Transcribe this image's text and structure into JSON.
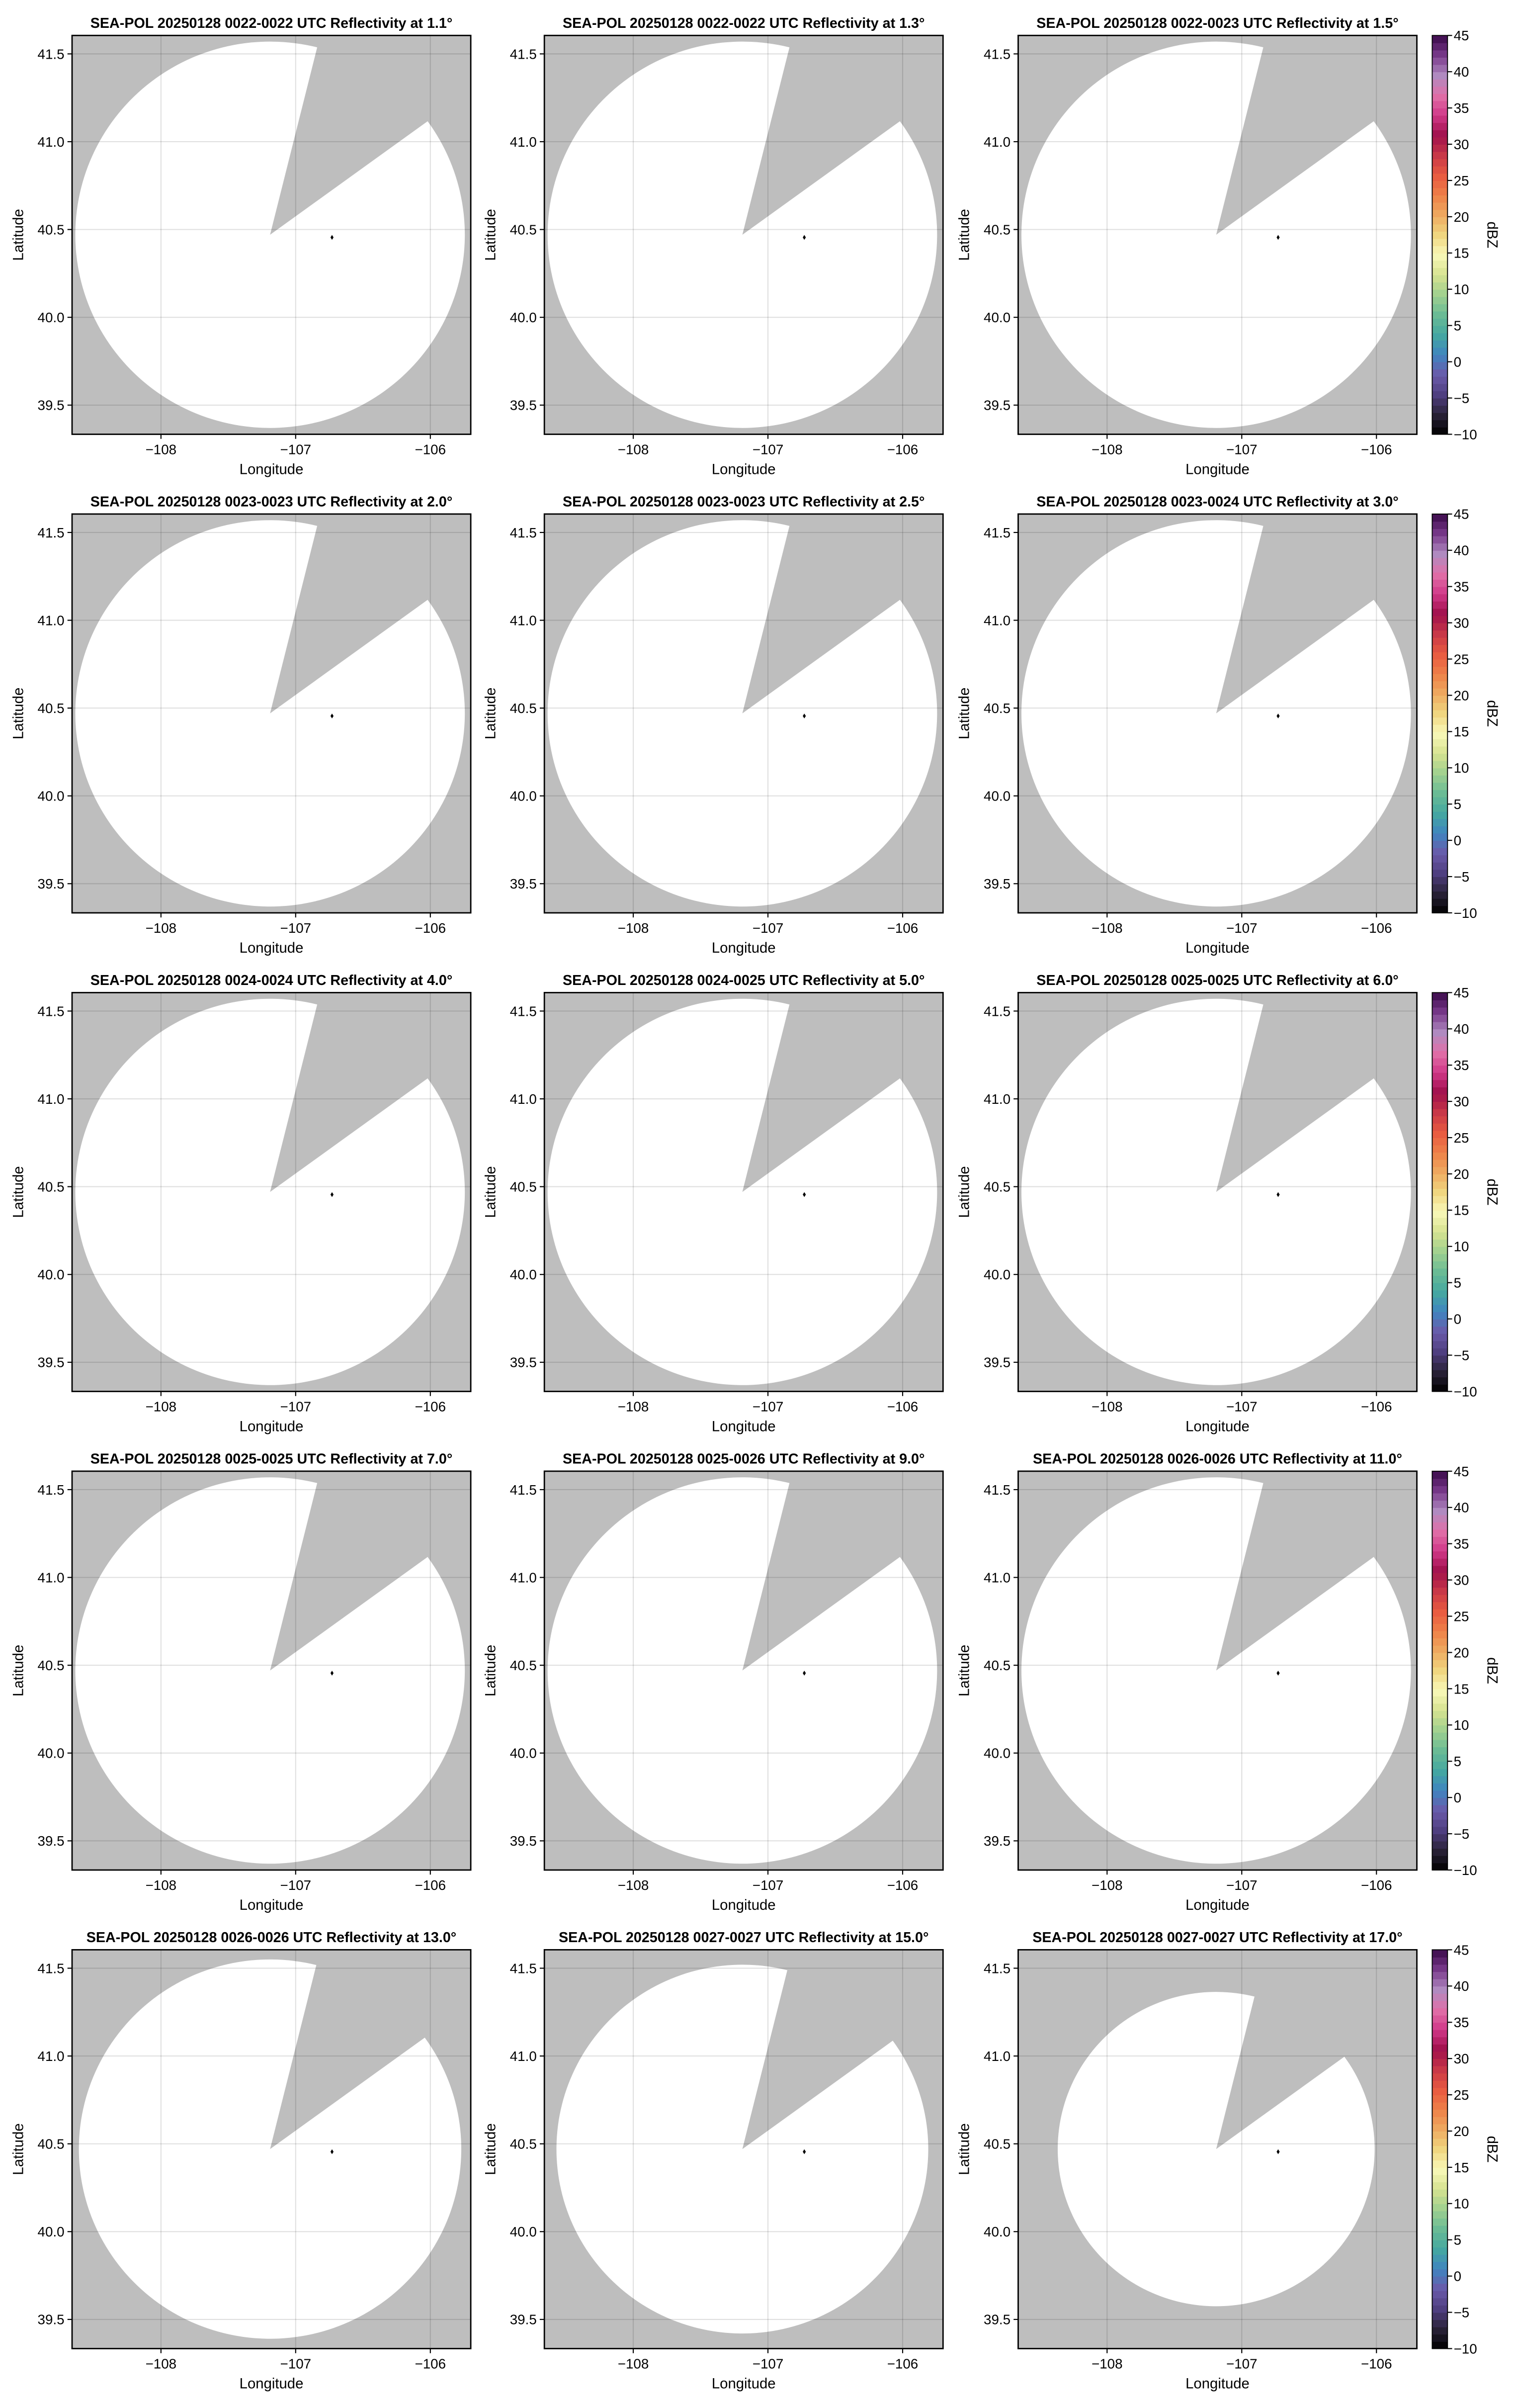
{
  "figure": {
    "background": "#ffffff",
    "no_data_color": "#bebebe",
    "valid_area_color": "#ffffff"
  },
  "chart_data": {
    "type": "heatmap",
    "layout": "5 rows x 3 columns",
    "xlabel": "Longitude",
    "ylabel": "Latitude",
    "xlim": [
      -108.66,
      -105.7
    ],
    "ylim": [
      39.334,
      41.605
    ],
    "xticks": [
      -108,
      -107,
      -106
    ],
    "xtick_labels": [
      "−108",
      "−107",
      "−106"
    ],
    "yticks": [
      39.5,
      40.0,
      40.5,
      41.0,
      41.5
    ],
    "ytick_labels": [
      "39.5",
      "40.0",
      "40.5",
      "41.0",
      "41.5"
    ],
    "grid": true,
    "marker": {
      "lon": -106.73,
      "lat": 40.455,
      "color": "#000000"
    },
    "radar_center": {
      "lon": -107.19,
      "lat": 40.47
    },
    "blocked_azimuth_deg": [
      14,
      54
    ],
    "colorbar": {
      "label": "dBZ",
      "range": [
        -10,
        45
      ],
      "ticks": [
        -10,
        -5,
        0,
        5,
        10,
        15,
        20,
        25,
        30,
        35,
        40,
        45
      ],
      "tick_labels": [
        "−10",
        "−5",
        "0",
        "5",
        "10",
        "15",
        "20",
        "25",
        "30",
        "35",
        "40",
        "45"
      ],
      "colors": [
        "#000000",
        "#2a2238",
        "#4f3f80",
        "#6a5aaa",
        "#3f85c0",
        "#45a8a0",
        "#6abb95",
        "#9fd08f",
        "#d6e290",
        "#f8f8b8",
        "#f0d680",
        "#eeaa60",
        "#ee8048",
        "#e85a40",
        "#c83848",
        "#a0104c",
        "#d03888",
        "#e070a8",
        "#b08ac0",
        "#7a3a8c",
        "#3a0a4a"
      ],
      "placement": "right of each row"
    },
    "panels": [
      {
        "title": "SEA-POL 20250128 0022-0022 UTC Reflectivity at 1.1°",
        "elevation": 1.1,
        "coverage_radius_lat_deg": 1.1
      },
      {
        "title": "SEA-POL 20250128 0022-0022 UTC Reflectivity at 1.3°",
        "elevation": 1.3,
        "coverage_radius_lat_deg": 1.1
      },
      {
        "title": "SEA-POL 20250128 0022-0023 UTC Reflectivity at 1.5°",
        "elevation": 1.5,
        "coverage_radius_lat_deg": 1.1
      },
      {
        "title": "SEA-POL 20250128 0023-0023 UTC Reflectivity at 2.0°",
        "elevation": 2.0,
        "coverage_radius_lat_deg": 1.1
      },
      {
        "title": "SEA-POL 20250128 0023-0023 UTC Reflectivity at 2.5°",
        "elevation": 2.5,
        "coverage_radius_lat_deg": 1.1
      },
      {
        "title": "SEA-POL 20250128 0023-0024 UTC Reflectivity at 3.0°",
        "elevation": 3.0,
        "coverage_radius_lat_deg": 1.1
      },
      {
        "title": "SEA-POL 20250128 0024-0024 UTC Reflectivity at 4.0°",
        "elevation": 4.0,
        "coverage_radius_lat_deg": 1.1
      },
      {
        "title": "SEA-POL 20250128 0024-0025 UTC Reflectivity at 5.0°",
        "elevation": 5.0,
        "coverage_radius_lat_deg": 1.1
      },
      {
        "title": "SEA-POL 20250128 0025-0025 UTC Reflectivity at 6.0°",
        "elevation": 6.0,
        "coverage_radius_lat_deg": 1.1
      },
      {
        "title": "SEA-POL 20250128 0025-0025 UTC Reflectivity at 7.0°",
        "elevation": 7.0,
        "coverage_radius_lat_deg": 1.1
      },
      {
        "title": "SEA-POL 20250128 0025-0026 UTC Reflectivity at 9.0°",
        "elevation": 9.0,
        "coverage_radius_lat_deg": 1.1
      },
      {
        "title": "SEA-POL 20250128 0026-0026 UTC Reflectivity at 11.0°",
        "elevation": 11.0,
        "coverage_radius_lat_deg": 1.1
      },
      {
        "title": "SEA-POL 20250128 0026-0026 UTC Reflectivity at 13.0°",
        "elevation": 13.0,
        "coverage_radius_lat_deg": 1.08
      },
      {
        "title": "SEA-POL 20250128 0027-0027 UTC Reflectivity at 15.0°",
        "elevation": 15.0,
        "coverage_radius_lat_deg": 1.05
      },
      {
        "title": "SEA-POL 20250128 0027-0027 UTC Reflectivity at 17.0°",
        "elevation": 17.0,
        "coverage_radius_lat_deg": 0.895
      }
    ]
  }
}
